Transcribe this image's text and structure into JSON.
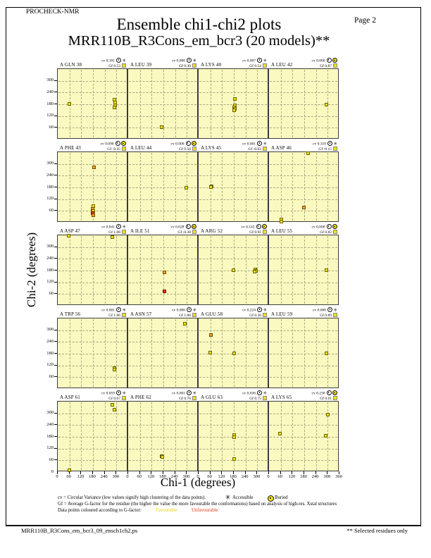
{
  "page": {
    "app_label": "PROCHECK-NMR",
    "page_label": "Page  2",
    "title_line1": "Ensemble chi1-chi2 plots",
    "title_line2": "MRR110B_R3Cons_em_bcr3 (20 models)**",
    "footer_left": "MRR110B_R3Cons_em_bcr3_09_ensch1ch2.ps",
    "footer_right": "** Selected residues only"
  },
  "axes": {
    "x_label": "Chi-1 (degrees)",
    "y_label": "Chi-2 (degrees)",
    "x_ticks": [
      0,
      60,
      120,
      180,
      240,
      300
    ],
    "x_end_tick": 360,
    "y_ticks": [
      300,
      240,
      180,
      120,
      60
    ],
    "y_zero_tick": 0
  },
  "legend": {
    "line1": "cv = Circular Variance (low values signify high clustering of the data points).",
    "accessible_label": "Accessible",
    "buried_label": "Buried",
    "line2": "Gf = Average G-factor for the residue (the higher the value the more favourable the conformations) based on analysis of high-res. Xstal structures",
    "line3_prefix": "Data points coloured according to G-factor:",
    "favourable_label": "Favourable",
    "unfavourable_label": "Unfavourable"
  },
  "colors": {
    "plot_bg": "#fafac0",
    "favourable": "#f0e014",
    "orange": "#f0a028",
    "unfavourable": "#e03414",
    "point_border": "#6b6400",
    "grid_line": "#a9a983"
  },
  "chart_data": {
    "type": "scatter",
    "xlabel": "Chi-1 (degrees)",
    "ylabel": "Chi-2 (degrees)",
    "xlim": [
      0,
      360
    ],
    "ylim": [
      0,
      360
    ],
    "tick_step": 60,
    "grid": true,
    "point_color_key": {
      "f": "favourable (yellow)",
      "o": "mid G-factor (orange)",
      "r": "unfavourable (red)"
    },
    "subplots": [
      {
        "name": "A GLN 38",
        "cv": "0.101",
        "gf": "0.53",
        "exposure": "accessible",
        "points": [
          [
            60,
            182,
            "f"
          ],
          [
            290,
            205,
            "f"
          ],
          [
            292,
            190,
            "f"
          ],
          [
            294,
            176,
            "f"
          ],
          [
            290,
            163,
            "f"
          ]
        ]
      },
      {
        "name": "A LEU 39",
        "cv": "0.000",
        "gf": "0.30",
        "exposure": "accessible",
        "points": [
          [
            172,
            62,
            "f"
          ]
        ]
      },
      {
        "name": "A LYS 40",
        "cv": "0.007",
        "gf": "0.54",
        "exposure": "accessible",
        "points": [
          [
            185,
            206,
            "f"
          ],
          [
            184,
            175,
            "f"
          ],
          [
            181,
            165,
            "f"
          ],
          [
            186,
            158,
            "f"
          ],
          [
            183,
            148,
            "f"
          ]
        ]
      },
      {
        "name": "A LEU 42",
        "cv": "0.000",
        "gf": "0.87",
        "exposure": "buried",
        "points": [
          [
            294,
            180,
            "f"
          ]
        ]
      },
      {
        "name": "A PHE 43",
        "cv": "0.090",
        "gf": "-0.35",
        "exposure": "buried",
        "points": [
          [
            185,
            281,
            "o"
          ],
          [
            182,
            85,
            "f"
          ],
          [
            179,
            72,
            "o"
          ],
          [
            182,
            60,
            "f"
          ],
          [
            178,
            47,
            "r"
          ],
          [
            181,
            37,
            "o"
          ]
        ]
      },
      {
        "name": "A LEU 44",
        "cv": "0.000",
        "gf": "0.56",
        "exposure": "buried",
        "points": [
          [
            297,
            180,
            "f"
          ]
        ]
      },
      {
        "name": "A LYS 45",
        "cv": "0.001",
        "gf": "-0.03",
        "exposure": "accessible",
        "points": [
          [
            66,
            187,
            "f"
          ],
          [
            62,
            181,
            "f"
          ]
        ]
      },
      {
        "name": "A ASP 46",
        "cv": "0.310",
        "gf": "-0.15",
        "exposure": "accessible",
        "points": [
          [
            198,
            355,
            "f"
          ],
          [
            178,
            77,
            "o"
          ],
          [
            62,
            16,
            "f"
          ],
          [
            63,
            7,
            "f"
          ]
        ]
      },
      {
        "name": "A ASP 47",
        "cv": "0.041",
        "gf": "1.08",
        "exposure": "accessible",
        "points": [
          [
            55,
            357,
            "f"
          ],
          [
            280,
            352,
            "f"
          ]
        ]
      },
      {
        "name": "A ILE 51",
        "cv": "0.028",
        "gf": "-0.38",
        "exposure": "buried",
        "points": [
          [
            184,
            170,
            "o"
          ],
          [
            187,
            73,
            "r"
          ]
        ]
      },
      {
        "name": "A ARG 52",
        "cv": "0.142",
        "gf": "0.91",
        "exposure": "buried",
        "points": [
          [
            179,
            181,
            "f"
          ],
          [
            289,
            186,
            "f"
          ],
          [
            293,
            180,
            "f"
          ],
          [
            286,
            175,
            "f"
          ]
        ]
      },
      {
        "name": "A LEU 55",
        "cv": "0.000",
        "gf": "0.82",
        "exposure": "buried",
        "points": [
          [
            294,
            181,
            "f"
          ]
        ]
      },
      {
        "name": "A TRP 56",
        "cv": "0.001",
        "gf": "1.06",
        "exposure": "accessible",
        "points": [
          [
            290,
            108,
            "f"
          ],
          [
            288,
            100,
            "f"
          ]
        ]
      },
      {
        "name": "A ASN 57",
        "cv": "0.000",
        "gf": "1.06",
        "exposure": "accessible",
        "points": [
          [
            291,
            334,
            "f"
          ]
        ]
      },
      {
        "name": "A GLU 58",
        "cv": "0.224",
        "gf": "0.36",
        "exposure": "accessible",
        "points": [
          [
            62,
            277,
            "o"
          ],
          [
            60,
            185,
            "f"
          ],
          [
            180,
            183,
            "f"
          ]
        ]
      },
      {
        "name": "A LEU 59",
        "cv": "0.000",
        "gf": "0.89",
        "exposure": "accessible",
        "points": [
          [
            292,
            183,
            "f"
          ]
        ]
      },
      {
        "name": "A ASP 61",
        "cv": "0.059",
        "gf": "0.67",
        "exposure": "accessible",
        "points": [
          [
            280,
            345,
            "f"
          ],
          [
            288,
            320,
            "f"
          ],
          [
            60,
            10,
            "f"
          ]
        ]
      },
      {
        "name": "A PHE 62",
        "cv": "0.001",
        "gf": "0.76",
        "exposure": "accessible",
        "points": [
          [
            172,
            82,
            "f"
          ],
          [
            176,
            77,
            "f"
          ]
        ]
      },
      {
        "name": "A GLU 63",
        "cv": "0.036",
        "gf": "0.75",
        "exposure": "accessible",
        "points": [
          [
            180,
            188,
            "f"
          ],
          [
            181,
            179,
            "f"
          ],
          [
            180,
            65,
            "f"
          ]
        ]
      },
      {
        "name": "A LYS 65",
        "cv": "0.230",
        "gf": "0.61",
        "exposure": "buried",
        "points": [
          [
            300,
            295,
            "f"
          ],
          [
            55,
            196,
            "f"
          ],
          [
            290,
            186,
            "f"
          ]
        ]
      }
    ]
  }
}
